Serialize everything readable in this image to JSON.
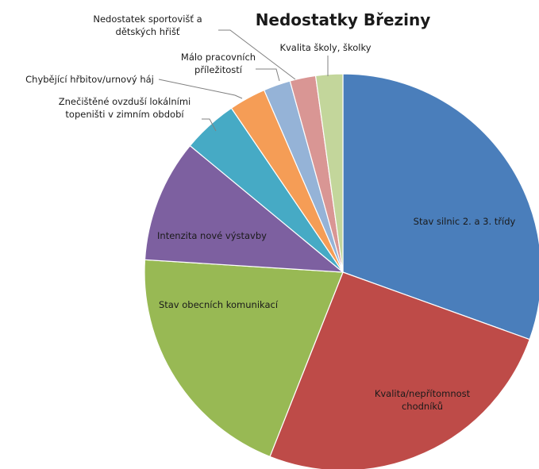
{
  "chart_data": {
    "type": "pie",
    "title": "Nedostatky Březiny",
    "legend": "none",
    "start_angle_deg": 0,
    "direction": "clockwise",
    "slices": [
      {
        "label": [
          "Stav silnic 2. a 3. třídy"
        ],
        "value": 30.5,
        "color": "#4a7ebb"
      },
      {
        "label": [
          "Kvalita/nepřítomnost",
          "chodníků"
        ],
        "value": 25.5,
        "color": "#be4b48"
      },
      {
        "label": [
          "Stav obecních komunikací"
        ],
        "value": 20.0,
        "color": "#98b954"
      },
      {
        "label": [
          "Intenzita nové výstavby"
        ],
        "value": 10.0,
        "color": "#7d60a0"
      },
      {
        "label": [
          "Znečištěné ovzduší lokálními",
          "topeništi v zimním období"
        ],
        "value": 4.5,
        "color": "#46aac5"
      },
      {
        "label": [
          "Chybějící hřbitov/urnový háj"
        ],
        "value": 3.0,
        "color": "#f59d56"
      },
      {
        "label": [
          "Málo pracovních",
          "příležitostí"
        ],
        "value": 2.2,
        "color": "#95b3d7"
      },
      {
        "label": [
          "Nedostatek sportovišť a",
          "dětských hřišť"
        ],
        "value": 2.1,
        "color": "#d99694"
      },
      {
        "label": [
          "Kvalita školy, školky"
        ],
        "value": 2.2,
        "color": "#c3d69b"
      }
    ]
  }
}
